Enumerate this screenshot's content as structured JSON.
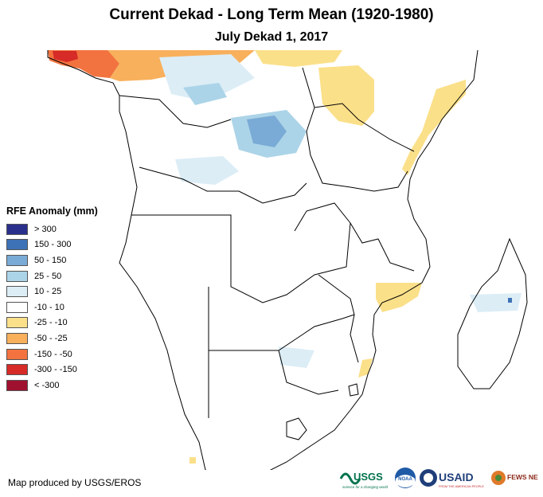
{
  "header": {
    "title": "Current Dekad - Long Term Mean (1920-1980)",
    "subtitle": "July Dekad 1, 2017"
  },
  "legend": {
    "title": "RFE Anomaly (mm)",
    "items": [
      {
        "label": "> 300",
        "color": "#2b2f8c"
      },
      {
        "label": "150 - 300",
        "color": "#3e72b6"
      },
      {
        "label": "50 - 150",
        "color": "#7aabd6"
      },
      {
        "label": "25 - 50",
        "color": "#acd4e8"
      },
      {
        "label": "10 - 25",
        "color": "#dcedf6"
      },
      {
        "label": "-10 - 10",
        "color": "#ffffff"
      },
      {
        "label": "-25 - -10",
        "color": "#fbe08a"
      },
      {
        "label": "-50 - -25",
        "color": "#f8b05c"
      },
      {
        "label": "-150 - -50",
        "color": "#f2733f"
      },
      {
        "label": "-300 - -150",
        "color": "#d62b26"
      },
      {
        "label": "< -300",
        "color": "#a0102f"
      }
    ]
  },
  "credit": "Map produced by USGS/EROS",
  "logos": {
    "usgs": "USGS",
    "usgs_tagline": "science for a changing world",
    "noaa": "NOAA",
    "usaid": "USAID",
    "usaid_tagline": "FROM THE AMERICAN PEOPLE",
    "fewsnet": "FEWS NET"
  }
}
